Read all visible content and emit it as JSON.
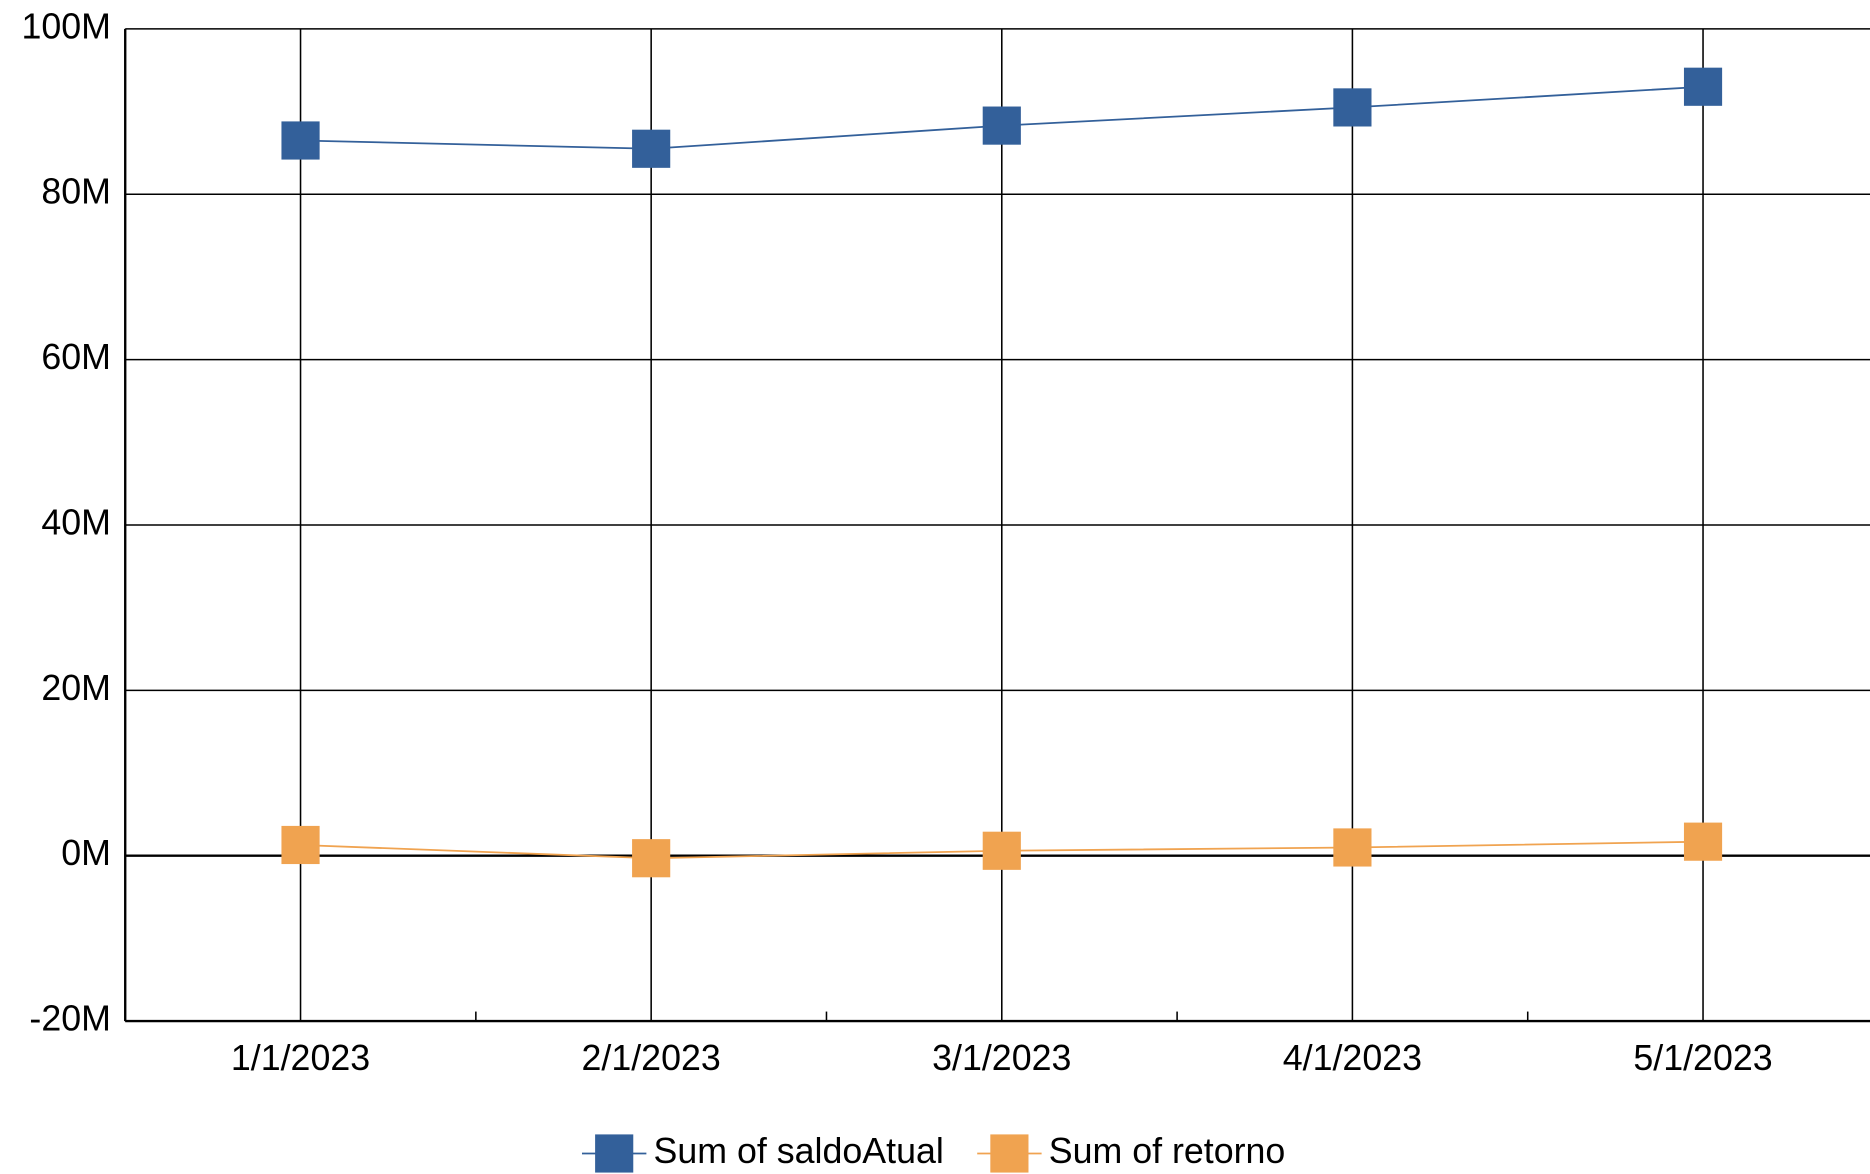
{
  "chart_data": {
    "type": "line",
    "categories": [
      "1/1/2023",
      "2/1/2023",
      "3/1/2023",
      "4/1/2023",
      "5/1/2023"
    ],
    "series": [
      {
        "name": "Sum of saldoAtual",
        "color": "#33609a",
        "values": [
          86500000,
          85500000,
          88300000,
          90500000,
          93000000
        ]
      },
      {
        "name": "Sum of retorno",
        "color": "#f0a350",
        "values": [
          1300000,
          -300000,
          600000,
          1000000,
          1700000
        ]
      }
    ],
    "ylim": [
      -20000000,
      100000000
    ],
    "yticks": [
      {
        "value": -20000000,
        "label": "-20M"
      },
      {
        "value": 0,
        "label": "0M"
      },
      {
        "value": 20000000,
        "label": "20M"
      },
      {
        "value": 40000000,
        "label": "40M"
      },
      {
        "value": 60000000,
        "label": "60M"
      },
      {
        "value": 80000000,
        "label": "80M"
      },
      {
        "value": 100000000,
        "label": "100M"
      }
    ],
    "grid": true,
    "legend": "bottom"
  }
}
